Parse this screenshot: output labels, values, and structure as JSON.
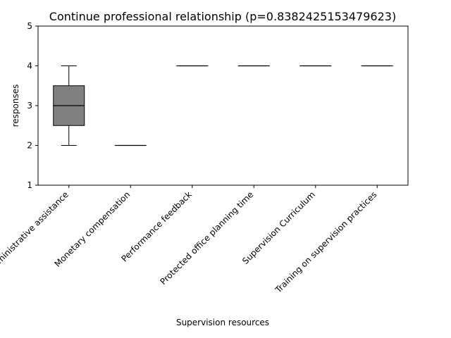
{
  "chart_data": {
    "type": "box",
    "title": "Continue professional relationship (p=0.8382425153479623)",
    "xlabel": "Supervision resources",
    "ylabel": "responses",
    "ylim": [
      1,
      5
    ],
    "yticks": [
      1,
      2,
      3,
      4,
      5
    ],
    "grid": false,
    "categories": [
      "Administrative assistance",
      "Monetary compensation",
      "Performance feedback",
      "Protected office planning time",
      "Supervision Curriculum",
      "Training on supervision practices"
    ],
    "boxes": [
      {
        "whisker_low": 2,
        "q1": 2.5,
        "median": 3,
        "q3": 3.5,
        "whisker_high": 4
      },
      {
        "whisker_low": 2,
        "q1": 2,
        "median": 2,
        "q3": 2,
        "whisker_high": 2
      },
      {
        "whisker_low": 4,
        "q1": 4,
        "median": 4,
        "q3": 4,
        "whisker_high": 4
      },
      {
        "whisker_low": 4,
        "q1": 4,
        "median": 4,
        "q3": 4,
        "whisker_high": 4
      },
      {
        "whisker_low": 4,
        "q1": 4,
        "median": 4,
        "q3": 4,
        "whisker_high": 4
      },
      {
        "whisker_low": 4,
        "q1": 4,
        "median": 4,
        "q3": 4,
        "whisker_high": 4
      }
    ],
    "colors": {
      "box_fill": "#808080",
      "line": "#000000"
    }
  }
}
